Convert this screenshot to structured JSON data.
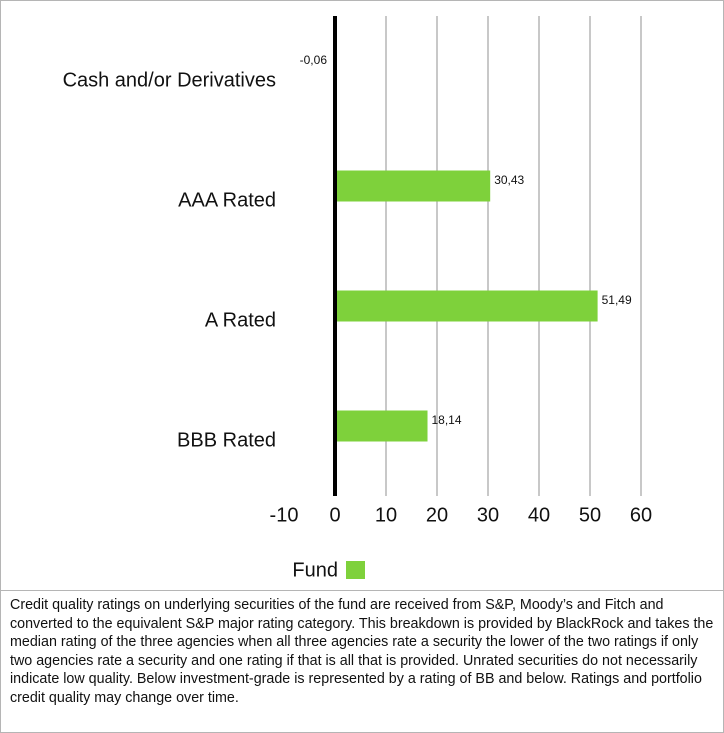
{
  "chart_data": {
    "type": "hbar",
    "categories": [
      "Cash and/or Derivatives",
      "AAA Rated",
      "A Rated",
      "BBB Rated"
    ],
    "series": [
      {
        "name": "Fund",
        "color": "#7ed13b",
        "values": [
          -0.06,
          30.43,
          51.49,
          18.14
        ],
        "value_labels": [
          "-0,06",
          "30,43",
          "51,49",
          "18,14"
        ]
      }
    ],
    "xlim": [
      -10,
      60
    ],
    "xticks": [
      -10,
      0,
      10,
      20,
      30,
      40,
      50,
      60
    ],
    "grid": true,
    "legend": "bottom"
  },
  "footnote": "Credit quality ratings on underlying securities of the fund are received from S&P, Moody’s and Fitch and converted to the equivalent S&P major rating category. This breakdown is provided by BlackRock and takes the median rating of the three agencies when all three agencies rate a security the lower of the two ratings if only two agencies rate a security and one rating if that is all that is provided. Unrated securities do not necessarily indicate low quality. Below investment-grade is represented by a rating of BB and below. Ratings and portfolio credit quality may change over time."
}
